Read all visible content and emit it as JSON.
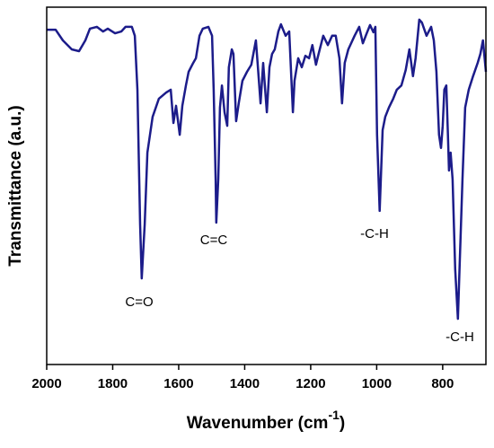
{
  "chart_data": {
    "type": "line",
    "ylabel": "Transmittance (a.u.)",
    "xlabel": {
      "text": "Wavenumber (cm",
      "superscript": "-1",
      "end": ")"
    },
    "annotations": [
      "C=O",
      "C=C",
      "-C-H",
      "-C-H"
    ],
    "xlim": [
      2000,
      669
    ],
    "ylim": [
      0,
      100
    ],
    "xticks": [
      2000,
      1800,
      1600,
      1400,
      1200,
      1000,
      800
    ],
    "series": [
      {
        "color": "#1c1c8a",
        "x": [
          2000,
          1973,
          1951,
          1924,
          1902,
          1883,
          1869,
          1848,
          1829,
          1815,
          1793,
          1774,
          1761,
          1742,
          1733,
          1725,
          1717,
          1712,
          1703,
          1695,
          1679,
          1660,
          1638,
          1624,
          1616,
          1608,
          1597,
          1589,
          1578,
          1570,
          1556,
          1548,
          1537,
          1527,
          1510,
          1499,
          1494,
          1488,
          1486,
          1480,
          1475,
          1469,
          1461,
          1453,
          1448,
          1439,
          1434,
          1426,
          1418,
          1407,
          1393,
          1380,
          1366,
          1361,
          1352,
          1344,
          1333,
          1325,
          1317,
          1309,
          1298,
          1290,
          1276,
          1265,
          1254,
          1249,
          1238,
          1227,
          1216,
          1205,
          1195,
          1184,
          1176,
          1162,
          1148,
          1135,
          1124,
          1113,
          1105,
          1097,
          1086,
          1067,
          1053,
          1042,
          1031,
          1020,
          1010,
          1004,
          999,
          991,
          982,
          974,
          963,
          950,
          939,
          925,
          912,
          901,
          890,
          882,
          871,
          863,
          849,
          835,
          827,
          819,
          811,
          805,
          800,
          795,
          789,
          784,
          781,
          776,
          770,
          762,
          754,
          749,
          740,
          732,
          721,
          708,
          694,
          686,
          678,
          669
        ],
        "values": [
          93.7,
          93.7,
          90.7,
          88.2,
          87.7,
          90.7,
          94,
          94.5,
          93.2,
          94,
          92.7,
          93.2,
          94.5,
          94.5,
          92,
          76.9,
          39.2,
          24.1,
          39.2,
          59.3,
          69.3,
          74.4,
          76.1,
          76.9,
          67.6,
          72.4,
          64.3,
          72.4,
          78.1,
          81.9,
          84.4,
          85.7,
          92,
          94,
          94.5,
          92,
          76.9,
          51.8,
          39.7,
          51.8,
          71.9,
          78.1,
          70.6,
          66.8,
          83.2,
          88.2,
          86.9,
          68.1,
          73.1,
          79.4,
          81.9,
          83.9,
          90.7,
          84.4,
          73.1,
          84.4,
          70.6,
          83.2,
          86.9,
          88.2,
          93.2,
          95.2,
          92,
          93.2,
          70.6,
          79.4,
          85.7,
          83.2,
          86.4,
          85.7,
          89.4,
          83.9,
          86.9,
          92,
          89.4,
          92,
          92,
          85.7,
          73.1,
          84.4,
          88.2,
          92,
          94.5,
          89.9,
          92.5,
          95,
          93,
          94.5,
          64.3,
          43,
          65.6,
          69.3,
          71.9,
          74.4,
          76.9,
          78.1,
          82.4,
          88.2,
          80.7,
          85.7,
          96.5,
          95.7,
          92,
          94.5,
          90.7,
          81.9,
          64.3,
          60.6,
          66.8,
          76.9,
          78.1,
          64.3,
          54.3,
          59.3,
          51.8,
          26.6,
          12.8,
          26.6,
          51.8,
          71.9,
          76.9,
          80.7,
          84.4,
          86.9,
          90.7,
          81.9
        ]
      }
    ]
  }
}
